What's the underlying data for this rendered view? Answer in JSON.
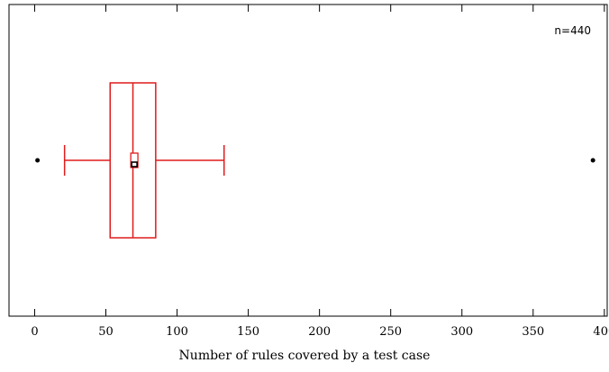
{
  "chart_data": {
    "type": "boxplot",
    "title": "",
    "xlabel": "Number of rules covered by a test case",
    "ylabel": "",
    "xlim": [
      -18,
      402
    ],
    "x_ticks": [
      0,
      50,
      100,
      150,
      200,
      250,
      300,
      350,
      400
    ],
    "x_tick_labels": [
      "0",
      "50",
      "100",
      "150",
      "200",
      "250",
      "300",
      "350",
      "400"
    ],
    "n_label": "n=440",
    "grid": false,
    "box": {
      "whisker_low": 21,
      "q1": 53,
      "median": 69,
      "q3": 85,
      "whisker_high": 133,
      "mean": 70,
      "mean_marker_half_width": 2.5,
      "outliers": [
        2,
        392
      ]
    },
    "colors": {
      "box": "#e01b1b",
      "axes": "#000000",
      "mean_marker": "#000000",
      "outlier": "#000000"
    }
  }
}
